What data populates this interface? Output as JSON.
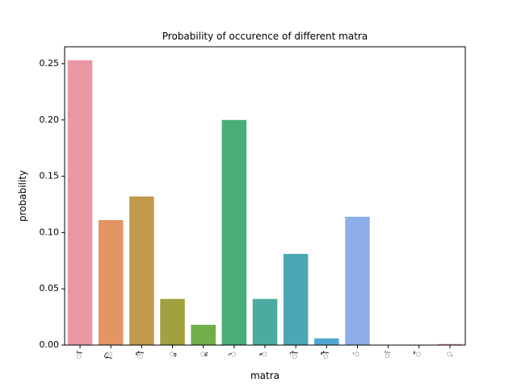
{
  "chart_data": {
    "type": "bar",
    "title": "Probability of occurence of different matra",
    "xlabel": "matra",
    "ylabel": "probability",
    "categories": [
      "ा",
      "ि",
      "ी",
      "ु",
      "ू",
      "े",
      "ै",
      "ो",
      "ौ",
      "ं",
      "ः",
      "ँ",
      "़"
    ],
    "values": [
      0.253,
      0.111,
      0.132,
      0.041,
      0.018,
      0.2,
      0.041,
      0.081,
      0.006,
      0.114,
      0.0,
      0.0,
      0.001
    ],
    "colors": [
      "#ea96a3",
      "#e49465",
      "#c09b4b",
      "#a2a13f",
      "#71ad48",
      "#48ad79",
      "#4aab9e",
      "#4ba7b4",
      "#52a6ce",
      "#8eaee9",
      "#c49cec",
      "#e88ee0",
      "#e893b8"
    ],
    "yticks": [
      "0.00",
      "0.05",
      "0.10",
      "0.15",
      "0.20",
      "0.25"
    ],
    "ylim": [
      0,
      0.265
    ],
    "grid": false,
    "legend": "none"
  }
}
